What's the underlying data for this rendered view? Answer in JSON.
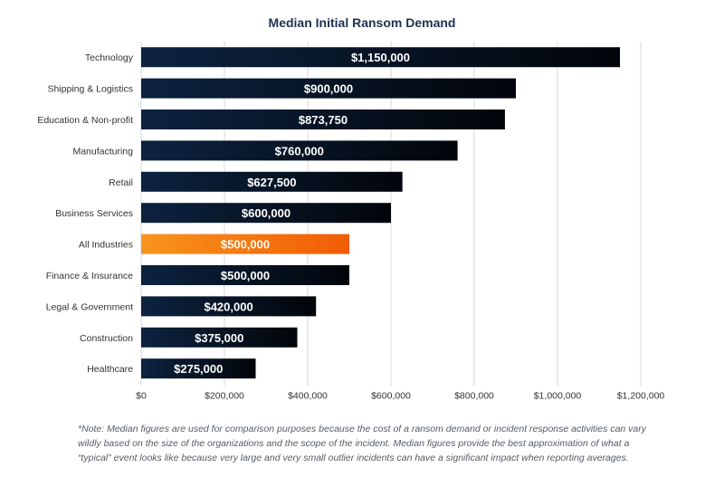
{
  "chart_data": {
    "type": "bar",
    "orientation": "horizontal",
    "title": "Median Initial Ransom Demand",
    "xlabel": "",
    "ylabel": "",
    "xlim": [
      0,
      1250000
    ],
    "ticks": [
      0,
      200000,
      400000,
      600000,
      800000,
      1000000,
      1200000
    ],
    "tick_labels": [
      "$0",
      "$200,000",
      "$400,000",
      "$600,000",
      "$800,000",
      "$1,000,000",
      "$1,200,000"
    ],
    "grid": true,
    "categories": [
      "Technology",
      "Shipping & Logistics",
      "Education & Non-profit",
      "Manufacturing",
      "Retail",
      "Business Services",
      "All Industries",
      "Finance & Insurance",
      "Legal & Government",
      "Construction",
      "Healthcare"
    ],
    "values": [
      1150000,
      900000,
      873750,
      760000,
      627500,
      600000,
      500000,
      500000,
      420000,
      375000,
      275000
    ],
    "value_labels": [
      "$1,150,000",
      "$900,000",
      "$873,750",
      "$760,000",
      "$627,500",
      "$600,000",
      "$500,000",
      "$500,000",
      "$420,000",
      "$375,000",
      "$275,000"
    ],
    "highlight_category": "All Industries",
    "colors": {
      "bar_dark": "#0c2340",
      "bar_dark_end": "#02050a",
      "highlight_start": "#f7941d",
      "highlight_end": "#f25c05",
      "grid": "#d9d9d9",
      "axis_text": "#333333",
      "title": "#1d3150"
    }
  },
  "footnote": "*Note: Median figures are used for comparison purposes because the cost of a ransom demand or incident response activities can vary wildly based on the size of the organizations and the scope of the incident. Median figures provide the best approximation of what a “typical” event looks like because very large and very small outlier incidents can have a significant impact when reporting averages."
}
